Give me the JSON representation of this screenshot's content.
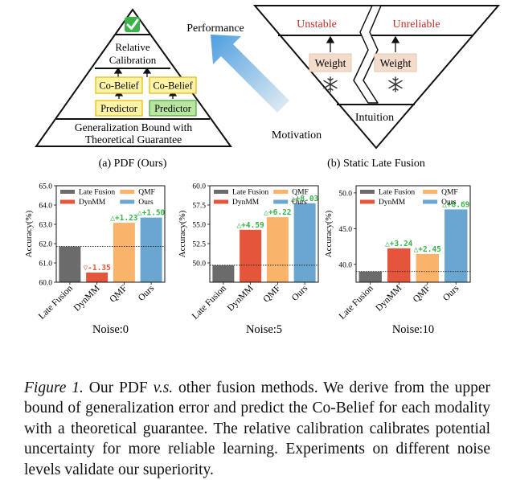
{
  "panel_a": {
    "checkmark": "check-mark-icon",
    "relative_calibration_line1": "Relative",
    "relative_calibration_line2": "Calibration",
    "cobelief_left": "Co-Belief",
    "cobelief_right": "Co-Belief",
    "predictor_left": "Predictor",
    "predictor_right": "Predictor",
    "bound_line1": "Generalization Bound with",
    "bound_line2": "Theoretical Guarantee",
    "caption": "(a) PDF (Ours)",
    "colors": {
      "cobelief_fill": "#fff3a8",
      "cobelief_stroke": "#e2b800",
      "predictor_yellow": "#fff3a8",
      "predictor_green": "#b8e6a0",
      "predictor_green_stroke": "#4aa33a",
      "check_green": "#3bb34a"
    }
  },
  "performance_label": "Performance",
  "motivation_label": "Motivation",
  "panel_b": {
    "unstable": "Unstable",
    "unreliable": "Unreliable",
    "weight_left": "Weight",
    "weight_right": "Weight",
    "snowflake_icon": "snowflake-icon",
    "intuition": "Intuition",
    "caption": "(b) Static Late Fusion",
    "colors": {
      "warn_red": "#c0302a",
      "weight_fill": "#f3dccb"
    }
  },
  "legend": {
    "items": [
      "Late Fusion",
      "QMF",
      "DynMM",
      "Ours"
    ],
    "colors": [
      "#6b6b6b",
      "#f9b36a",
      "#e4553b",
      "#6aa6cf"
    ]
  },
  "chart_data": [
    {
      "type": "bar",
      "title": "Noise:0",
      "ylabel": "Accuracy(%)",
      "categories": [
        "Late Fusion",
        "DynMM",
        "QMF",
        "Ours"
      ],
      "values": [
        61.85,
        60.5,
        63.08,
        63.35
      ],
      "ylim": [
        60.0,
        65.0
      ],
      "yticks": [
        "60.0",
        "61.0",
        "62.0",
        "63.0",
        "64.0",
        "65.0"
      ],
      "annotations": [
        "",
        "▽-1.35",
        "△+1.23",
        "△+1.50"
      ],
      "baseline": 61.85
    },
    {
      "type": "bar",
      "title": "Noise:5",
      "ylabel": "Accuracy(%)",
      "categories": [
        "Late Fusion",
        "DynMM",
        "QMF",
        "Ours"
      ],
      "values": [
        49.7,
        54.29,
        55.92,
        57.73
      ],
      "ylim": [
        47.5,
        60.0
      ],
      "yticks": [
        "50.0",
        "52.5",
        "55.0",
        "57.5",
        "60.0"
      ],
      "annotations": [
        "",
        "△+4.59",
        "△+6.22",
        "△+8.03"
      ],
      "baseline": 49.7
    },
    {
      "type": "bar",
      "title": "Noise:10",
      "ylabel": "Accuracy(%)",
      "categories": [
        "Late Fusion",
        "DynMM",
        "QMF",
        "Ours"
      ],
      "values": [
        39.0,
        42.24,
        41.45,
        47.69
      ],
      "ylim": [
        37.5,
        51.0
      ],
      "yticks": [
        "40.0",
        "45.0",
        "50.0"
      ],
      "annotations": [
        "",
        "△+3.24",
        "△+2.45",
        "△+8.69"
      ],
      "baseline": 39.0
    }
  ],
  "caption": {
    "label": "Figure 1.",
    "text_start": " Our PDF ",
    "vs": "v.s.",
    "text_rest": " other fusion methods. We derive from the upper bound of generalization error and predict the Co-Belief for each modality with a theoretical guarantee. The relative calibration calibrates potential uncertainty for more reliable learning. Experiments on different noise levels validate our superiority."
  }
}
